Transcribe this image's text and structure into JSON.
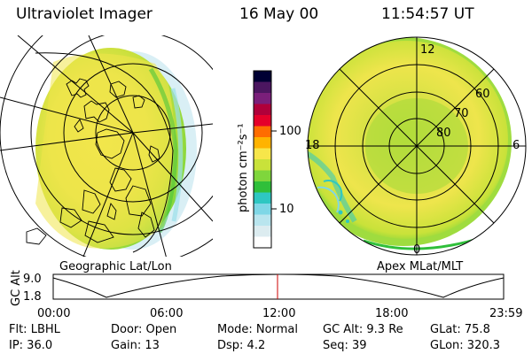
{
  "header": {
    "title": "Ultraviolet Imager",
    "date": "16 May 00",
    "time": "11:54:57 UT"
  },
  "left_panel": {
    "caption": "Geographic Lat/Lon"
  },
  "right_panel": {
    "caption": "Apex MLat/MLT",
    "mlt_labels": [
      "12",
      "18",
      "6",
      "0"
    ],
    "lat_labels": [
      "60",
      "70",
      "80"
    ]
  },
  "colorbar": {
    "unit_label": "photon cm⁻²s⁻¹",
    "ticks": [
      "100",
      "10"
    ],
    "colors": [
      "#000033",
      "#4b1660",
      "#7a1f7a",
      "#b0003a",
      "#e5002a",
      "#ff6d00",
      "#ffb300",
      "#f7e64a",
      "#c9e23a",
      "#7fd63c",
      "#2fbf3a",
      "#2ec7c2",
      "#7fd7e6",
      "#b9e5ee",
      "#dcecf0",
      "#ffffff"
    ]
  },
  "timeline": {
    "axis_label": "GC Alt",
    "y_ticks": [
      "9.0",
      "1.8"
    ],
    "x_ticks": [
      "00:00",
      "06:00",
      "12:00",
      "18:00",
      "23:59"
    ],
    "marker_color": "#cc0000"
  },
  "info": {
    "row1": [
      "Flt: LBHL",
      "Door: Open",
      "Mode: Normal",
      "GC Alt: 9.3 Re",
      "GLat:  75.8"
    ],
    "row2": [
      "IP: 36.0",
      "Gain: 13",
      "Dsp:     4.2",
      "Seq: 39",
      "GLon: 320.3"
    ]
  }
}
